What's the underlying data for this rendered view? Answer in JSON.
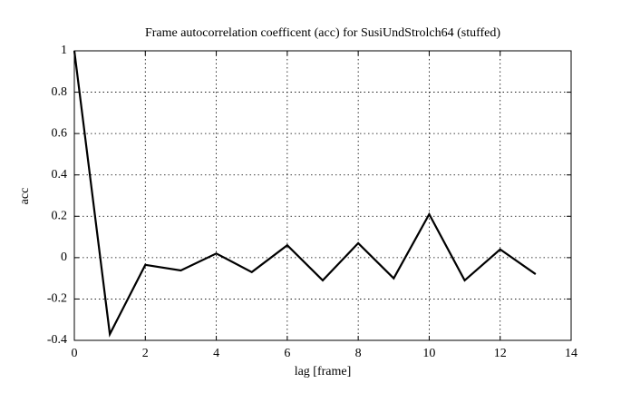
{
  "chart_data": {
    "type": "line",
    "title": "Frame autocorrelation coefficent (acc) for SusiUndStrolch64 (stuffed)",
    "xlabel": "lag [frame]",
    "ylabel": "acc",
    "x": [
      0,
      1,
      2,
      3,
      4,
      5,
      6,
      7,
      8,
      9,
      10,
      11,
      12,
      13
    ],
    "series": [
      {
        "color": "#000000",
        "values": [
          1.0,
          -0.37,
          -0.035,
          -0.062,
          0.02,
          -0.07,
          0.06,
          -0.11,
          0.07,
          -0.1,
          0.21,
          -0.11,
          0.04,
          -0.08
        ]
      }
    ],
    "xlim": [
      0,
      14
    ],
    "xticks": [
      0,
      2,
      4,
      6,
      8,
      10,
      12,
      14
    ],
    "ylim": [
      -0.4,
      1
    ],
    "yticks": [
      -0.4,
      -0.2,
      0,
      0.2,
      0.4,
      0.6,
      0.8,
      1
    ],
    "grid": true
  }
}
